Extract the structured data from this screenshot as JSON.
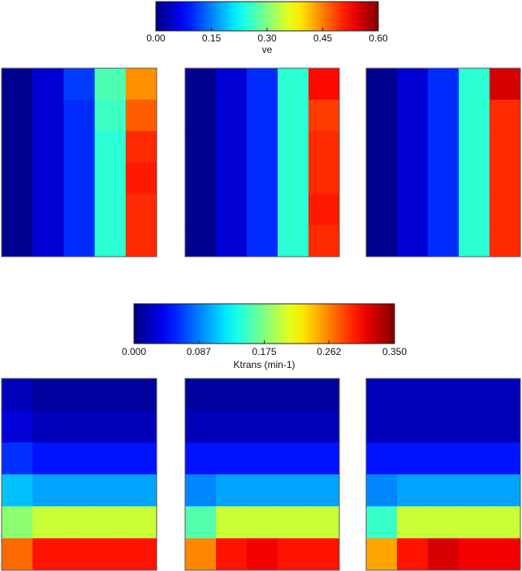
{
  "chart_data": [
    {
      "type": "heatmap",
      "colormap": "jet",
      "colorbar_label": "ve",
      "zlim": [
        0,
        0.6
      ],
      "zticks": [
        {
          "value": 0,
          "label": "0.00"
        },
        {
          "value": 0.15,
          "label": "0.15"
        },
        {
          "value": 0.3,
          "label": "0.30"
        },
        {
          "value": 0.45,
          "label": "0.45"
        },
        {
          "value": 0.6,
          "label": "0.60"
        }
      ],
      "panels": [
        {
          "z": [
            [
              0.01,
              0.05,
              0.11,
              0.27,
              0.44
            ],
            [
              0.01,
              0.05,
              0.1,
              0.26,
              0.47
            ],
            [
              0.01,
              0.05,
              0.1,
              0.25,
              0.5
            ],
            [
              0.01,
              0.05,
              0.1,
              0.25,
              0.51
            ],
            [
              0.01,
              0.05,
              0.1,
              0.25,
              0.5
            ],
            [
              0.01,
              0.05,
              0.1,
              0.25,
              0.5
            ]
          ]
        },
        {
          "z": [
            [
              0.01,
              0.05,
              0.1,
              0.25,
              0.52
            ],
            [
              0.01,
              0.05,
              0.1,
              0.25,
              0.49
            ],
            [
              0.01,
              0.05,
              0.1,
              0.25,
              0.5
            ],
            [
              0.01,
              0.05,
              0.1,
              0.25,
              0.5
            ],
            [
              0.01,
              0.05,
              0.1,
              0.25,
              0.51
            ],
            [
              0.01,
              0.05,
              0.1,
              0.25,
              0.5
            ]
          ]
        },
        {
          "z": [
            [
              0.01,
              0.05,
              0.1,
              0.25,
              0.55
            ],
            [
              0.01,
              0.05,
              0.1,
              0.25,
              0.5
            ],
            [
              0.01,
              0.05,
              0.1,
              0.25,
              0.5
            ],
            [
              0.01,
              0.05,
              0.1,
              0.25,
              0.5
            ],
            [
              0.01,
              0.05,
              0.1,
              0.25,
              0.5
            ],
            [
              0.01,
              0.05,
              0.1,
              0.25,
              0.5
            ]
          ]
        }
      ]
    },
    {
      "type": "heatmap",
      "colormap": "jet",
      "colorbar_label": "Ktrans (min-1)",
      "zlim": [
        0,
        0.35
      ],
      "zticks": [
        {
          "value": 0,
          "label": "0.000"
        },
        {
          "value": 0.087,
          "label": "0.087"
        },
        {
          "value": 0.175,
          "label": "0.175"
        },
        {
          "value": 0.262,
          "label": "0.262"
        },
        {
          "value": 0.35,
          "label": "0.350"
        }
      ],
      "panels": [
        {
          "z": [
            [
              0.02,
              0.01,
              0.01,
              0.01,
              0.01
            ],
            [
              0.03,
              0.02,
              0.02,
              0.02,
              0.02
            ],
            [
              0.06,
              0.05,
              0.05,
              0.05,
              0.05
            ],
            [
              0.11,
              0.1,
              0.1,
              0.1,
              0.1
            ],
            [
              0.18,
              0.2,
              0.2,
              0.2,
              0.2
            ],
            [
              0.27,
              0.3,
              0.3,
              0.3,
              0.3
            ]
          ]
        },
        {
          "z": [
            [
              0.01,
              0.01,
              0.01,
              0.01,
              0.01
            ],
            [
              0.02,
              0.02,
              0.02,
              0.02,
              0.02
            ],
            [
              0.05,
              0.05,
              0.05,
              0.05,
              0.05
            ],
            [
              0.09,
              0.1,
              0.1,
              0.1,
              0.1
            ],
            [
              0.16,
              0.2,
              0.2,
              0.2,
              0.2
            ],
            [
              0.26,
              0.3,
              0.31,
              0.3,
              0.3
            ]
          ]
        },
        {
          "z": [
            [
              0.02,
              0.02,
              0.02,
              0.02,
              0.02
            ],
            [
              0.02,
              0.02,
              0.02,
              0.02,
              0.02
            ],
            [
              0.05,
              0.05,
              0.05,
              0.05,
              0.05
            ],
            [
              0.09,
              0.1,
              0.1,
              0.1,
              0.1
            ],
            [
              0.15,
              0.2,
              0.2,
              0.2,
              0.2
            ],
            [
              0.25,
              0.3,
              0.32,
              0.31,
              0.31
            ]
          ]
        }
      ]
    }
  ]
}
